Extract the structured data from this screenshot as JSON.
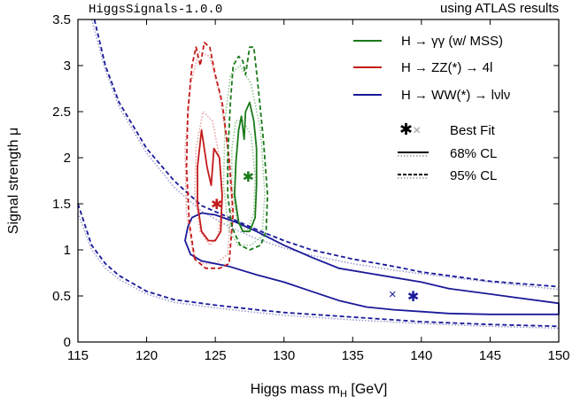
{
  "chart_data": {
    "type": "contour",
    "header_left": "HiggsSignals-1.0.0",
    "header_right": "using ATLAS results",
    "xlabel": "Higgs mass m",
    "xlabel_sub": "H",
    "xlabel_unit": " [GeV]",
    "ylabel": "Signal strength μ",
    "xlim": [
      115,
      150
    ],
    "ylim": [
      0,
      3.5
    ],
    "xticks": [
      "115",
      "120",
      "125",
      "130",
      "135",
      "140",
      "145",
      "150"
    ],
    "yticks": [
      "0",
      "0.5",
      "1",
      "1.5",
      "2",
      "2.5",
      "3",
      "3.5"
    ],
    "legend": {
      "series": [
        {
          "label": "H → γγ (w/ MSS)",
          "color": "#1a7a1a"
        },
        {
          "label": "H → ZZ(*) → 4l",
          "color": "#c41a1a"
        },
        {
          "label": "H → WW(*) → lνlν",
          "color": "#1a1a99"
        }
      ],
      "markers": {
        "label": "Best Fit"
      },
      "styles": [
        {
          "label": "68% CL",
          "line": "solid"
        },
        {
          "label": "95% CL",
          "line": "dashed"
        }
      ],
      "placement": "top-right"
    },
    "best_fit": [
      {
        "series": "H → γγ (w/ MSS)",
        "x": 127.4,
        "y": 1.8
      },
      {
        "series": "H → ZZ(*) → 4l",
        "x": 125.1,
        "y": 1.5
      },
      {
        "series": "H → WW(*) → lνlν",
        "x": 139.4,
        "y": 0.5
      },
      {
        "series": "H → WW(*) → lνlν (alt)",
        "x": 137.9,
        "y": 0.52
      }
    ],
    "colors": {
      "gamma": "#1a7a1a",
      "zz": "#c41a1a",
      "ww": "#1a1a99",
      "gamma_light": "#8cc08c",
      "zz_light": "#e89a9a",
      "ww_light": "#9a9ad0",
      "grey": "#999999"
    },
    "contours": {
      "gamma_68": [
        [
          126.7,
          1.3
        ],
        [
          126.4,
          1.6
        ],
        [
          126.5,
          1.95
        ],
        [
          126.7,
          2.3
        ],
        [
          126.9,
          2.45
        ],
        [
          127.1,
          2.2
        ],
        [
          127.2,
          2.5
        ],
        [
          127.5,
          2.6
        ],
        [
          127.8,
          2.4
        ],
        [
          128.0,
          2.1
        ],
        [
          128.0,
          1.7
        ],
        [
          127.9,
          1.35
        ],
        [
          127.5,
          1.2
        ],
        [
          127.0,
          1.2
        ]
      ],
      "gamma_95": [
        [
          126.2,
          1.25
        ],
        [
          125.9,
          1.6
        ],
        [
          125.9,
          2.0
        ],
        [
          126.1,
          2.6
        ],
        [
          126.3,
          3.0
        ],
        [
          126.7,
          3.1
        ],
        [
          127.0,
          3.05
        ],
        [
          127.2,
          2.9
        ],
        [
          127.5,
          3.2
        ],
        [
          127.8,
          3.2
        ],
        [
          128.1,
          2.8
        ],
        [
          128.5,
          2.2
        ],
        [
          128.8,
          1.6
        ],
        [
          128.7,
          1.2
        ],
        [
          128.3,
          1.05
        ],
        [
          127.5,
          1.0
        ],
        [
          126.8,
          1.05
        ]
      ],
      "gamma_68_alt": [
        [
          126.6,
          1.3
        ],
        [
          126.2,
          1.7
        ],
        [
          126.2,
          2.1
        ],
        [
          126.5,
          2.4
        ],
        [
          127.0,
          2.4
        ],
        [
          127.6,
          2.25
        ],
        [
          127.9,
          1.8
        ],
        [
          127.8,
          1.4
        ],
        [
          127.3,
          1.2
        ]
      ],
      "gamma_95_alt": [
        [
          126.0,
          1.2
        ],
        [
          125.6,
          1.7
        ],
        [
          125.7,
          2.4
        ],
        [
          126.1,
          2.9
        ],
        [
          126.8,
          3.0
        ],
        [
          127.6,
          2.8
        ],
        [
          128.3,
          2.3
        ],
        [
          128.6,
          1.6
        ],
        [
          128.4,
          1.15
        ],
        [
          127.6,
          1.05
        ],
        [
          126.7,
          1.05
        ]
      ],
      "zz_68": [
        [
          124.0,
          1.2
        ],
        [
          123.7,
          1.5
        ],
        [
          123.7,
          1.9
        ],
        [
          124.0,
          2.3
        ],
        [
          124.4,
          1.9
        ],
        [
          124.7,
          1.7
        ],
        [
          124.9,
          2.1
        ],
        [
          125.3,
          2.0
        ],
        [
          125.5,
          1.6
        ],
        [
          125.4,
          1.2
        ],
        [
          125.0,
          1.1
        ],
        [
          124.5,
          1.1
        ]
      ],
      "zz_95": [
        [
          123.5,
          0.9
        ],
        [
          123.1,
          1.3
        ],
        [
          122.9,
          1.9
        ],
        [
          123.0,
          2.5
        ],
        [
          123.3,
          3.0
        ],
        [
          123.6,
          3.2
        ],
        [
          123.9,
          3.0
        ],
        [
          124.2,
          3.25
        ],
        [
          124.6,
          3.2
        ],
        [
          125.0,
          2.9
        ],
        [
          125.5,
          2.6
        ],
        [
          126.0,
          2.0
        ],
        [
          126.3,
          1.4
        ],
        [
          126.0,
          0.85
        ],
        [
          125.3,
          0.8
        ],
        [
          124.3,
          0.8
        ]
      ],
      "zz_68_alt": [
        [
          123.9,
          1.2
        ],
        [
          123.5,
          1.6
        ],
        [
          123.6,
          2.1
        ],
        [
          124.1,
          2.5
        ],
        [
          124.8,
          2.4
        ],
        [
          125.3,
          2.0
        ],
        [
          125.5,
          1.5
        ],
        [
          125.2,
          1.15
        ],
        [
          124.6,
          1.05
        ]
      ],
      "zz_95_alt": [
        [
          123.4,
          0.95
        ],
        [
          122.9,
          1.4
        ],
        [
          122.8,
          2.1
        ],
        [
          123.2,
          2.8
        ],
        [
          123.8,
          3.15
        ],
        [
          124.6,
          3.1
        ],
        [
          125.3,
          2.7
        ],
        [
          125.9,
          2.1
        ],
        [
          126.2,
          1.5
        ],
        [
          125.9,
          0.95
        ],
        [
          125.0,
          0.85
        ],
        [
          124.1,
          0.85
        ]
      ],
      "ww_68": [
        [
          123.0,
          1.25
        ],
        [
          122.8,
          1.1
        ],
        [
          123.2,
          0.95
        ],
        [
          124.0,
          0.88
        ],
        [
          126.0,
          0.82
        ],
        [
          128.0,
          0.73
        ],
        [
          130.0,
          0.65
        ],
        [
          132.0,
          0.55
        ],
        [
          134.0,
          0.45
        ],
        [
          136.0,
          0.38
        ],
        [
          138.0,
          0.35
        ],
        [
          140.0,
          0.33
        ],
        [
          142.0,
          0.31
        ],
        [
          145.0,
          0.3
        ],
        [
          150.0,
          0.3
        ],
        [
          150.0,
          0.42
        ],
        [
          147.0,
          0.48
        ],
        [
          145.0,
          0.52
        ],
        [
          142.0,
          0.58
        ],
        [
          140.0,
          0.65
        ],
        [
          138.0,
          0.7
        ],
        [
          136.0,
          0.75
        ],
        [
          134.0,
          0.8
        ],
        [
          132.0,
          0.92
        ],
        [
          130.0,
          1.05
        ],
        [
          128.0,
          1.2
        ],
        [
          126.5,
          1.3
        ],
        [
          125.0,
          1.38
        ],
        [
          124.0,
          1.4
        ],
        [
          123.3,
          1.35
        ]
      ],
      "ww_95_upper": [
        [
          116.2,
          3.5
        ],
        [
          117.0,
          3.0
        ],
        [
          118.0,
          2.6
        ],
        [
          120.0,
          2.1
        ],
        [
          122.0,
          1.75
        ],
        [
          124.0,
          1.48
        ],
        [
          126.0,
          1.35
        ],
        [
          128.0,
          1.22
        ],
        [
          130.0,
          1.1
        ],
        [
          132.0,
          1.0
        ],
        [
          135.0,
          0.9
        ],
        [
          138.0,
          0.82
        ],
        [
          140.0,
          0.76
        ],
        [
          145.0,
          0.66
        ],
        [
          150.0,
          0.6
        ]
      ],
      "ww_95_lower": [
        [
          115.0,
          1.5
        ],
        [
          116.0,
          1.05
        ],
        [
          117.0,
          0.85
        ],
        [
          118.0,
          0.72
        ],
        [
          120.0,
          0.55
        ],
        [
          122.0,
          0.46
        ],
        [
          125.0,
          0.4
        ],
        [
          128.0,
          0.35
        ],
        [
          130.0,
          0.32
        ],
        [
          135.0,
          0.27
        ],
        [
          140.0,
          0.22
        ],
        [
          145.0,
          0.19
        ],
        [
          150.0,
          0.17
        ]
      ],
      "grey_95_upper": [
        [
          116.0,
          3.5
        ],
        [
          117.0,
          2.95
        ],
        [
          118.0,
          2.55
        ],
        [
          120.0,
          2.05
        ],
        [
          122.0,
          1.68
        ],
        [
          124.0,
          1.42
        ],
        [
          126.0,
          1.25
        ],
        [
          128.0,
          1.12
        ],
        [
          130.0,
          1.02
        ],
        [
          132.0,
          0.94
        ],
        [
          135.0,
          0.85
        ],
        [
          138.0,
          0.78
        ],
        [
          140.0,
          0.74
        ],
        [
          145.0,
          0.65
        ],
        [
          150.0,
          0.57
        ]
      ],
      "grey_95_lower": [
        [
          115.0,
          1.4
        ],
        [
          116.0,
          1.0
        ],
        [
          117.0,
          0.8
        ],
        [
          118.0,
          0.68
        ],
        [
          120.0,
          0.52
        ],
        [
          122.0,
          0.43
        ],
        [
          125.0,
          0.37
        ],
        [
          128.0,
          0.32
        ],
        [
          130.0,
          0.29
        ],
        [
          135.0,
          0.24
        ],
        [
          140.0,
          0.2
        ],
        [
          145.0,
          0.17
        ],
        [
          150.0,
          0.15
        ]
      ]
    }
  }
}
